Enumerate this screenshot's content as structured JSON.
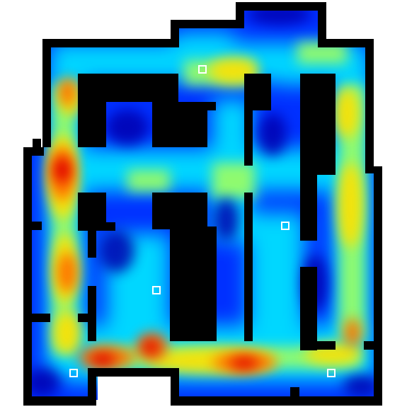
{
  "map": {
    "kind": "occupancy heatmap floor plan",
    "colormap": [
      "#00007f",
      "#0000ff",
      "#00a0ff",
      "#00ffff",
      "#7fff7f",
      "#ffff00",
      "#ff9000",
      "#ff0000",
      "#7f0000"
    ],
    "wall_color": "#000000",
    "background_color": "#ffffff",
    "marker_color": "#ffffff",
    "marker_count": 5
  }
}
